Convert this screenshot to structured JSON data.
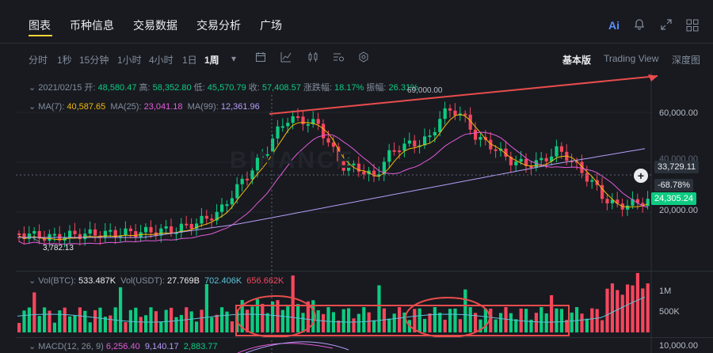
{
  "tabs": [
    "图表",
    "币种信息",
    "交易数据",
    "交易分析",
    "广场"
  ],
  "top_icons": {
    "ai": "Ai",
    "bell": "bell-icon",
    "expand": "expand-icon",
    "grid": "grid-icon"
  },
  "intervals": [
    "分时",
    "1秒",
    "15分钟",
    "1小时",
    "4小时",
    "1日",
    "1周"
  ],
  "interval_dropdown": "▾",
  "views": [
    "基本版",
    "Trading View",
    "深度图"
  ],
  "candle_info": {
    "date": "2021/02/15",
    "open_label": "开:",
    "open": "48,580.47",
    "high_label": "高:",
    "high": "58,352.80",
    "low_label": "低:",
    "low": "45,570.79",
    "close_label": "收:",
    "close": "57,408.57",
    "change_label": "涨跌幅:",
    "change": "18.17%",
    "amp_label": "振幅:",
    "amp": "26.31%"
  },
  "ma": {
    "ma7_label": "MA(7):",
    "ma7": "40,587.65",
    "ma25_label": "MA(25):",
    "ma25": "23,041.18",
    "ma99_label": "MA(99):",
    "ma99": "12,361.96"
  },
  "vol": {
    "btc_label": "Vol(BTC):",
    "btc": "533.487K",
    "usdt_label": "Vol(USDT):",
    "usdt": "27.769B",
    "v1": "702.406K",
    "v2": "656.662K"
  },
  "macd": {
    "label": "MACD(12, 26, 9)",
    "v1": "6,256.40",
    "v2": "9,140.17",
    "v3": "2,883.77"
  },
  "price_axis": [
    "60,000.00",
    "40,000.00",
    "20,000.00"
  ],
  "crosshair_price": "33,729.11",
  "crosshair_pct": "-68.78%",
  "last_price": "24,305.24",
  "vol_axis": [
    "1M",
    "500K"
  ],
  "macd_axis": "10,000.00",
  "annotations": {
    "high": "69,000.00",
    "low": "3,782.13"
  },
  "watermark": "BINANCE",
  "colors": {
    "up": "#0ecb81",
    "down": "#f6465d",
    "ma7": "#f0b90b",
    "ma25": "#e35bd8",
    "ma99": "#b69cf6",
    "annot": "#e84c4c"
  }
}
